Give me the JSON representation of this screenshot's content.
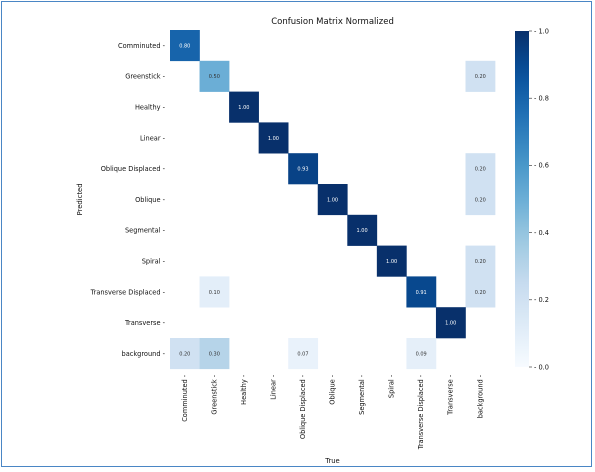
{
  "chart_data": {
    "type": "heatmap",
    "title": "Confusion Matrix Normalized",
    "xlabel": "True",
    "ylabel": "Predicted",
    "x_categories": [
      "Comminuted",
      "Greenstick",
      "Healthy",
      "Linear",
      "Oblique Displaced",
      "Oblique",
      "Segmental",
      "Spiral",
      "Transverse Displaced",
      "Transverse",
      "background"
    ],
    "y_categories": [
      "Comminuted",
      "Greenstick",
      "Healthy",
      "Linear",
      "Oblique Displaced",
      "Oblique",
      "Segmental",
      "Spiral",
      "Transverse Displaced",
      "Transverse",
      "background"
    ],
    "cells": [
      {
        "row": 0,
        "col": 0,
        "value": 0.8,
        "label": "0.80"
      },
      {
        "row": 1,
        "col": 1,
        "value": 0.5,
        "label": "0.50"
      },
      {
        "row": 1,
        "col": 10,
        "value": 0.2,
        "label": "0.20"
      },
      {
        "row": 2,
        "col": 2,
        "value": 1.0,
        "label": "1.00"
      },
      {
        "row": 3,
        "col": 3,
        "value": 1.0,
        "label": "1.00"
      },
      {
        "row": 4,
        "col": 4,
        "value": 0.93,
        "label": "0.93"
      },
      {
        "row": 4,
        "col": 10,
        "value": 0.2,
        "label": "0.20"
      },
      {
        "row": 5,
        "col": 5,
        "value": 1.0,
        "label": "1.00"
      },
      {
        "row": 5,
        "col": 10,
        "value": 0.2,
        "label": "0.20"
      },
      {
        "row": 6,
        "col": 6,
        "value": 1.0,
        "label": "1.00"
      },
      {
        "row": 7,
        "col": 7,
        "value": 1.0,
        "label": "1.00"
      },
      {
        "row": 7,
        "col": 10,
        "value": 0.2,
        "label": "0.20"
      },
      {
        "row": 8,
        "col": 1,
        "value": 0.1,
        "label": "0.10"
      },
      {
        "row": 8,
        "col": 8,
        "value": 0.91,
        "label": "0.91"
      },
      {
        "row": 8,
        "col": 10,
        "value": 0.2,
        "label": "0.20"
      },
      {
        "row": 9,
        "col": 9,
        "value": 1.0,
        "label": "1.00"
      },
      {
        "row": 10,
        "col": 0,
        "value": 0.2,
        "label": "0.20"
      },
      {
        "row": 10,
        "col": 1,
        "value": 0.3,
        "label": "0.30"
      },
      {
        "row": 10,
        "col": 4,
        "value": 0.07,
        "label": "0.07"
      },
      {
        "row": 10,
        "col": 8,
        "value": 0.09,
        "label": "0.09"
      }
    ],
    "colorbar": {
      "min": 0.0,
      "max": 1.0,
      "ticks": [
        0.0,
        0.2,
        0.4,
        0.6,
        0.8,
        1.0
      ],
      "tick_labels": [
        "0.0",
        "0.2",
        "0.4",
        "0.6",
        "0.8",
        "1.0"
      ],
      "colormap": "Blues",
      "low_color": "#f7fbff",
      "high_color": "#08306b"
    },
    "grid": false
  }
}
